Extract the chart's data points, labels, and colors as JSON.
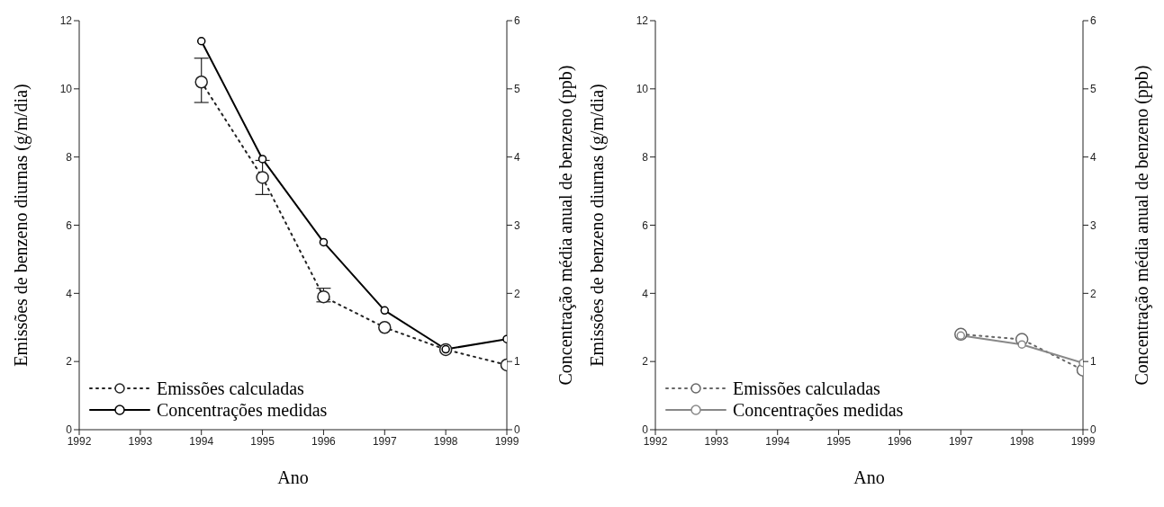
{
  "chart_data": [
    {
      "type": "line",
      "xlabel": "Ano",
      "ylabel": "Emissões de benzeno diurnas  (g/m/dia)",
      "y2label": "Concentração média anual de benzeno (ppb)",
      "x": [
        1994,
        1995,
        1996,
        1997,
        1998,
        1999
      ],
      "xlim": [
        1992,
        1999
      ],
      "xticks": [
        1992,
        1993,
        1994,
        1995,
        1996,
        1997,
        1998,
        1999
      ],
      "ylim": [
        0,
        12
      ],
      "yticks": [
        0,
        2,
        4,
        6,
        8,
        10,
        12
      ],
      "y2lim": [
        0,
        6
      ],
      "y2ticks": [
        0,
        1,
        2,
        3,
        4,
        5,
        6
      ],
      "legend": "bottom left",
      "series": [
        {
          "name": "Emissões calculadas",
          "color": "#222222",
          "line_style": "dotted",
          "marker": "circle",
          "values": [
            10.2,
            7.4,
            3.9,
            3.0,
            2.35,
            1.9
          ],
          "errors": [
            [
              9.6,
              10.9
            ],
            [
              6.9,
              7.9
            ],
            [
              3.75,
              4.15
            ],
            null,
            null,
            null
          ]
        },
        {
          "name": "Concentrações medidas",
          "color": "#000000",
          "line_style": "solid",
          "marker": "circle",
          "axis": "y2",
          "values": [
            5.7,
            3.97,
            2.75,
            1.75,
            1.18,
            1.33
          ]
        }
      ]
    },
    {
      "type": "line",
      "xlabel": "Ano",
      "ylabel": "Emissões de benzeno diurnas  (g/m/dia)",
      "y2label": "Concentração média anual de benzeno (ppb)",
      "x": [
        1997,
        1998,
        1999
      ],
      "xlim": [
        1992,
        1999
      ],
      "xticks": [
        1992,
        1993,
        1994,
        1995,
        1996,
        1997,
        1998,
        1999
      ],
      "ylim": [
        0,
        12
      ],
      "yticks": [
        0,
        2,
        4,
        6,
        8,
        10,
        12
      ],
      "y2lim": [
        0,
        6
      ],
      "y2ticks": [
        0,
        1,
        2,
        3,
        4,
        5,
        6
      ],
      "legend": "bottom left",
      "series": [
        {
          "name": "Emissões calculadas",
          "color": "#666666",
          "line_style": "dotted",
          "marker": "circle",
          "values": [
            2.8,
            2.65,
            1.75
          ]
        },
        {
          "name": "Concentrações medidas",
          "color": "#888888",
          "line_style": "solid",
          "marker": "circle",
          "axis": "y2",
          "values": [
            1.38,
            1.25,
            0.98
          ]
        }
      ]
    }
  ]
}
